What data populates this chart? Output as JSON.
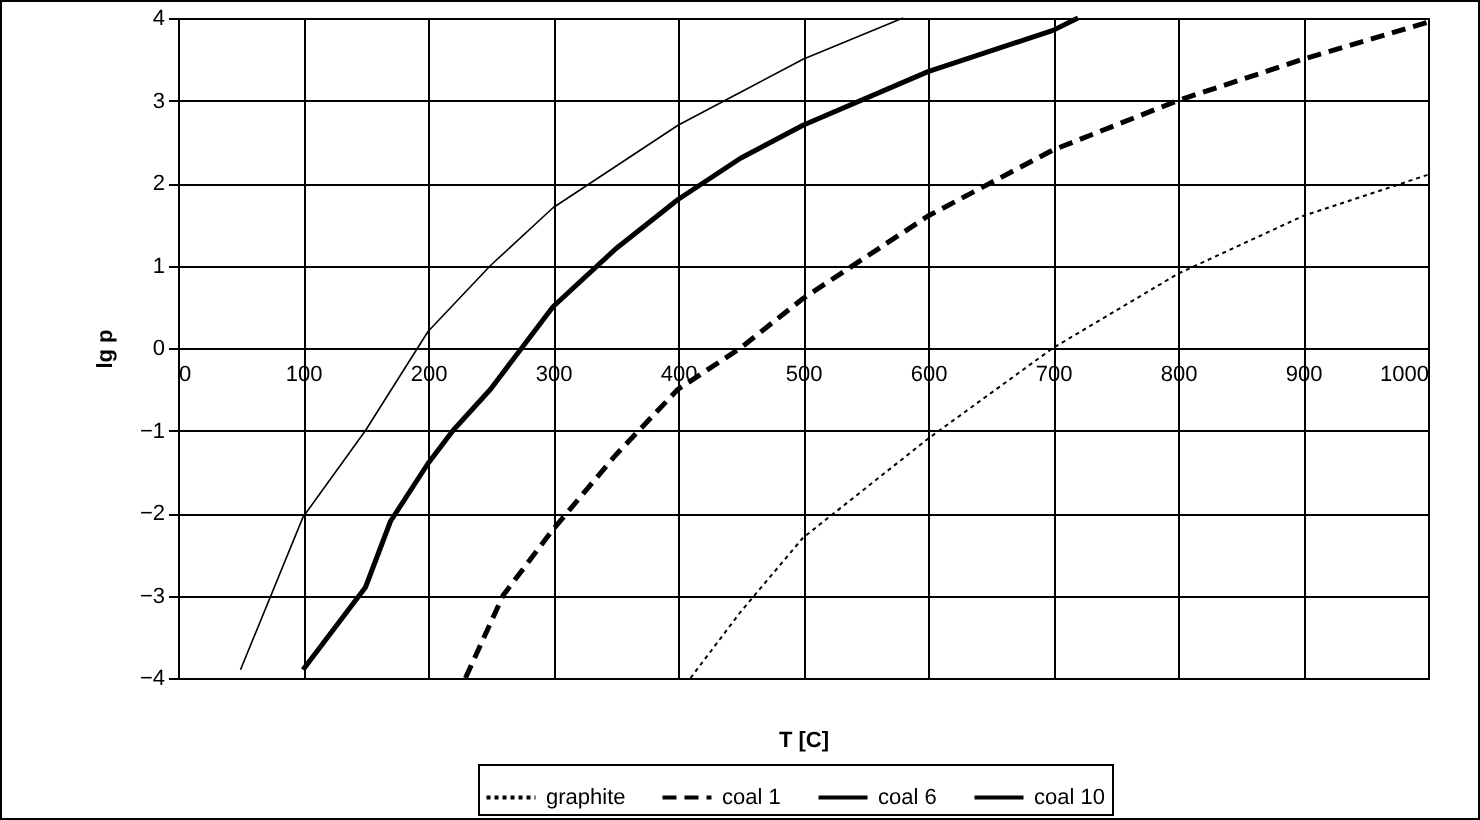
{
  "chart_data": {
    "type": "line",
    "xlabel": "T [C]",
    "ylabel": "lg p",
    "xlim": [
      0,
      1000
    ],
    "ylim": [
      -4,
      4
    ],
    "xticks": [
      0,
      100,
      200,
      300,
      400,
      500,
      600,
      700,
      800,
      900,
      1000
    ],
    "yticks": [
      -4,
      -3,
      -2,
      -1,
      0,
      1,
      2,
      3,
      4
    ],
    "grid": true,
    "legend": "bottom",
    "series": [
      {
        "name": "graphite",
        "color": "#000000",
        "line_style": "dotted",
        "x": [
          410,
          450,
          500,
          600,
          700,
          800,
          900,
          1000
        ],
        "values": [
          -4,
          -3.2,
          -2.3,
          -1.1,
          0,
          0.9,
          1.6,
          2.1
        ]
      },
      {
        "name": "coal 1",
        "color": "#000000",
        "line_style": "dashed",
        "x": [
          230,
          260,
          300,
          350,
          400,
          450,
          500,
          600,
          700,
          800,
          900,
          1000
        ],
        "values": [
          -4,
          -3,
          -2.2,
          -1.3,
          -0.5,
          0,
          0.6,
          1.6,
          2.4,
          3,
          3.5,
          3.95
        ]
      },
      {
        "name": "coal 6",
        "color": "#000000",
        "line_style": "solid",
        "x": [
          100,
          150,
          170,
          200,
          220,
          250,
          300,
          350,
          400,
          450,
          500,
          600,
          700,
          720
        ],
        "values": [
          -3.9,
          -2.9,
          -2.1,
          -1.4,
          -1,
          -0.5,
          0.5,
          1.2,
          1.8,
          2.3,
          2.7,
          3.35,
          3.85,
          4
        ]
      },
      {
        "name": "coal 10",
        "color": "#000000",
        "line_style": "solid",
        "x": [
          50,
          100,
          150,
          200,
          250,
          300,
          350,
          400,
          450,
          500,
          580
        ],
        "values": [
          -3.9,
          -2.05,
          -1,
          0.2,
          1,
          1.7,
          2.2,
          2.7,
          3.1,
          3.5,
          4
        ]
      }
    ]
  }
}
